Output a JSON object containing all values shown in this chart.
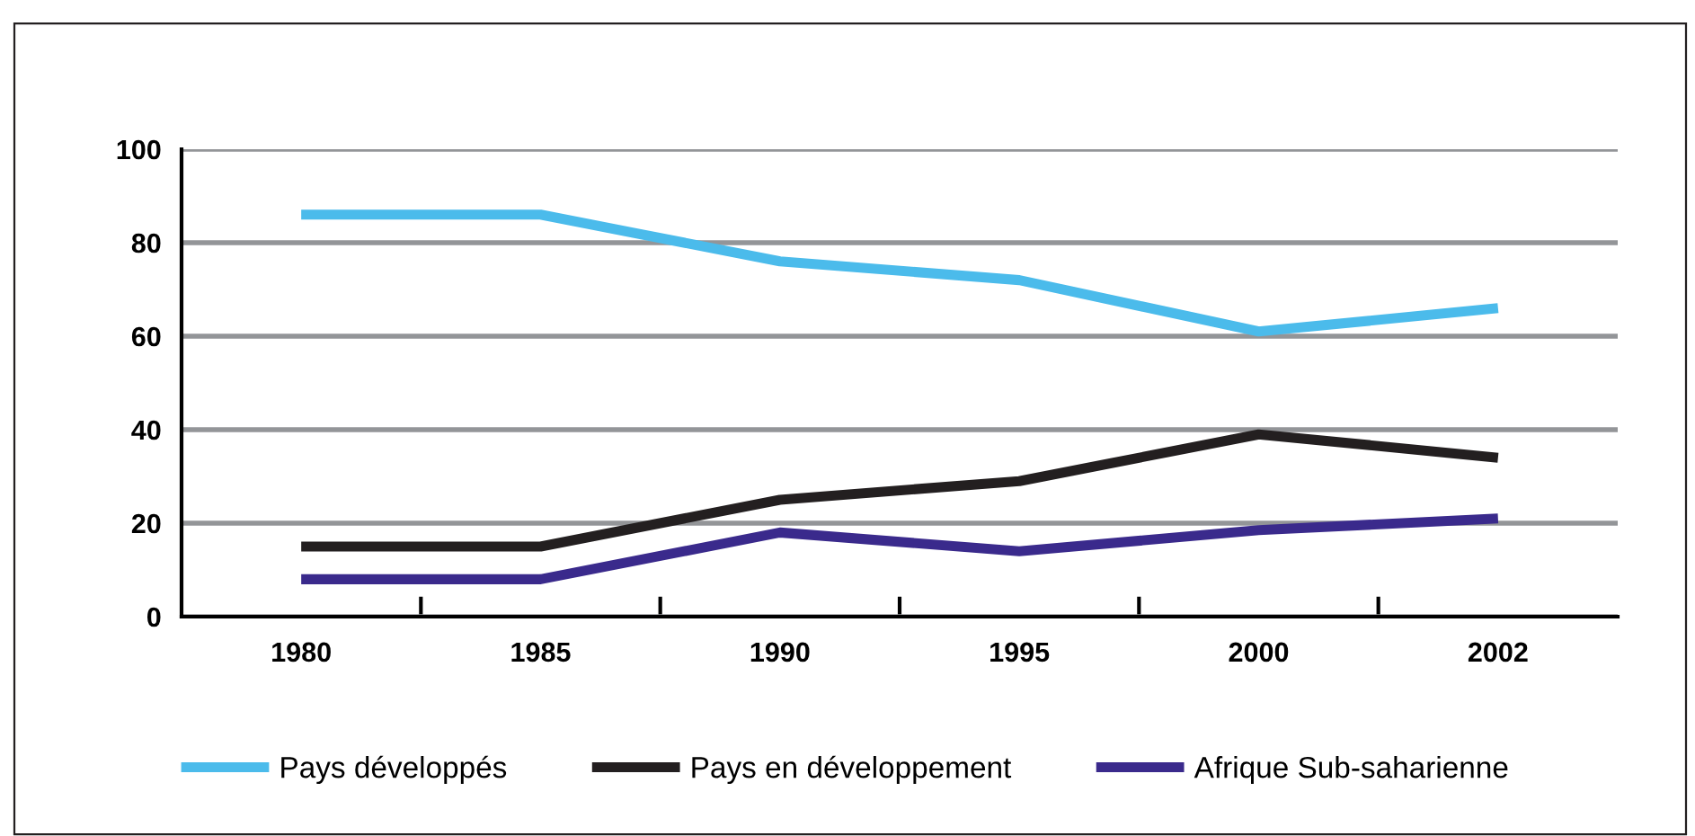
{
  "chart_data": {
    "type": "line",
    "categories": [
      "1980",
      "1985",
      "1990",
      "1995",
      "2000",
      "2002"
    ],
    "series": [
      {
        "name": "Pays développés",
        "color": "#4bbbeb",
        "values": [
          86,
          86,
          76,
          72,
          61,
          66
        ]
      },
      {
        "name": "Pays en développement",
        "color": "#231f20",
        "values": [
          15,
          15,
          25,
          29,
          39,
          34
        ]
      },
      {
        "name": "Afrique Sub-saharienne",
        "color": "#3a2a8c",
        "values": [
          8,
          8,
          18,
          14,
          18.5,
          21
        ]
      }
    ],
    "ylim": [
      0,
      100
    ],
    "yticks": [
      0,
      20,
      40,
      60,
      80,
      100
    ],
    "grid": "y",
    "legend": "bottom",
    "line_style": "solid"
  }
}
